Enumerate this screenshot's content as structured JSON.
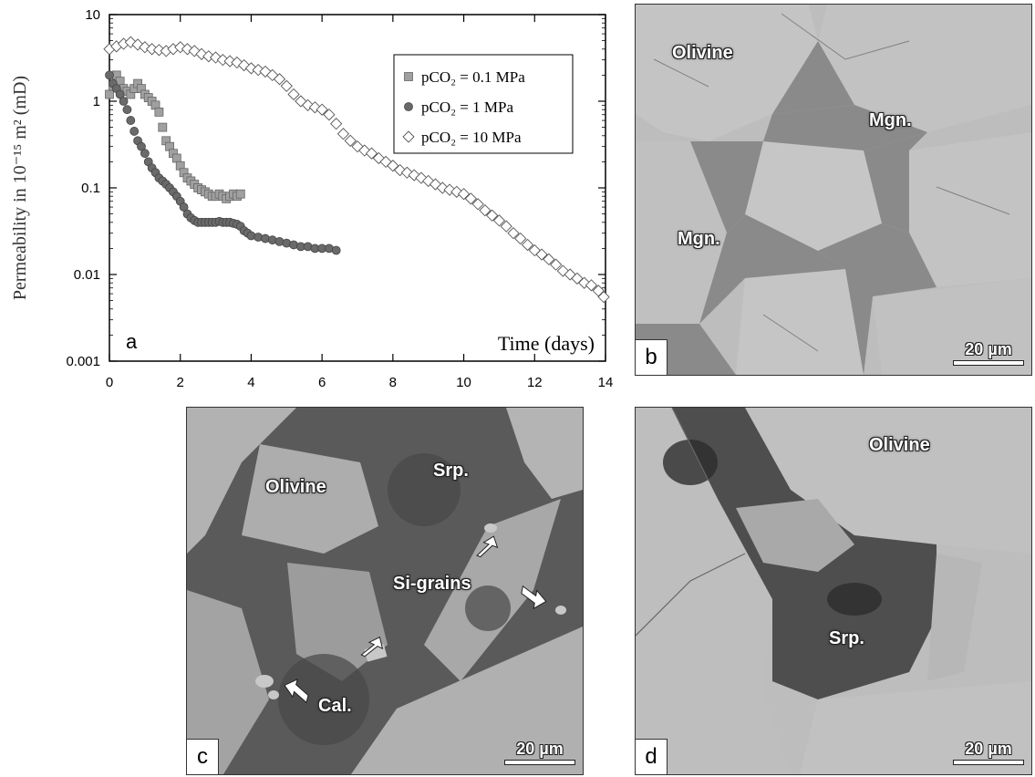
{
  "chart_data": {
    "type": "scatter",
    "panel_label": "a",
    "ylabel": "Permeability in 10⁻¹⁵ m² (mD)",
    "xlabel": "Time  (days)",
    "xlim": [
      0,
      14
    ],
    "ylim": [
      0.001,
      10
    ],
    "yscale": "log",
    "x_ticks": [
      "0",
      "2",
      "4",
      "6",
      "8",
      "10",
      "12",
      "14"
    ],
    "y_ticks": [
      "0.001",
      "0.01",
      "0.1",
      "1",
      "10"
    ],
    "legend_position": "top-right",
    "series": [
      {
        "name": "pCO₂ = 0.1 MPa",
        "marker": "square",
        "color": "#a0a0a0",
        "points": [
          [
            0,
            1.2
          ],
          [
            0.1,
            1.5
          ],
          [
            0.2,
            2.0
          ],
          [
            0.3,
            1.7
          ],
          [
            0.4,
            1.4
          ],
          [
            0.5,
            1.3
          ],
          [
            0.6,
            1.2
          ],
          [
            0.7,
            1.4
          ],
          [
            0.8,
            1.6
          ],
          [
            0.9,
            1.4
          ],
          [
            1.0,
            1.2
          ],
          [
            1.1,
            1.1
          ],
          [
            1.2,
            1.0
          ],
          [
            1.3,
            0.9
          ],
          [
            1.4,
            0.75
          ],
          [
            1.5,
            0.5
          ],
          [
            1.6,
            0.35
          ],
          [
            1.7,
            0.3
          ],
          [
            1.8,
            0.25
          ],
          [
            1.9,
            0.22
          ],
          [
            2.0,
            0.18
          ],
          [
            2.1,
            0.15
          ],
          [
            2.2,
            0.13
          ],
          [
            2.3,
            0.12
          ],
          [
            2.4,
            0.11
          ],
          [
            2.5,
            0.1
          ],
          [
            2.6,
            0.095
          ],
          [
            2.7,
            0.09
          ],
          [
            2.8,
            0.085
          ],
          [
            2.9,
            0.08
          ],
          [
            3.0,
            0.08
          ],
          [
            3.1,
            0.085
          ],
          [
            3.2,
            0.08
          ],
          [
            3.3,
            0.075
          ],
          [
            3.4,
            0.08
          ],
          [
            3.5,
            0.085
          ],
          [
            3.6,
            0.08
          ],
          [
            3.7,
            0.085
          ]
        ]
      },
      {
        "name": "pCO₂ = 1 MPa",
        "marker": "circle",
        "color": "#6a6a6a",
        "points": [
          [
            0,
            2.0
          ],
          [
            0.1,
            1.6
          ],
          [
            0.2,
            1.4
          ],
          [
            0.3,
            1.2
          ],
          [
            0.4,
            1.0
          ],
          [
            0.5,
            0.8
          ],
          [
            0.6,
            0.6
          ],
          [
            0.7,
            0.45
          ],
          [
            0.8,
            0.35
          ],
          [
            0.9,
            0.3
          ],
          [
            1.0,
            0.25
          ],
          [
            1.1,
            0.2
          ],
          [
            1.2,
            0.17
          ],
          [
            1.3,
            0.15
          ],
          [
            1.4,
            0.13
          ],
          [
            1.5,
            0.12
          ],
          [
            1.6,
            0.11
          ],
          [
            1.7,
            0.1
          ],
          [
            1.8,
            0.09
          ],
          [
            1.9,
            0.08
          ],
          [
            2.0,
            0.07
          ],
          [
            2.1,
            0.06
          ],
          [
            2.2,
            0.05
          ],
          [
            2.3,
            0.045
          ],
          [
            2.4,
            0.042
          ],
          [
            2.5,
            0.04
          ],
          [
            2.6,
            0.04
          ],
          [
            2.7,
            0.04
          ],
          [
            2.8,
            0.04
          ],
          [
            2.9,
            0.04
          ],
          [
            3.0,
            0.04
          ],
          [
            3.1,
            0.041
          ],
          [
            3.2,
            0.04
          ],
          [
            3.3,
            0.04
          ],
          [
            3.4,
            0.04
          ],
          [
            3.5,
            0.039
          ],
          [
            3.6,
            0.038
          ],
          [
            3.7,
            0.036
          ],
          [
            3.8,
            0.032
          ],
          [
            3.9,
            0.03
          ],
          [
            4.0,
            0.028
          ],
          [
            4.2,
            0.027
          ],
          [
            4.4,
            0.026
          ],
          [
            4.6,
            0.025
          ],
          [
            4.8,
            0.024
          ],
          [
            5.0,
            0.023
          ],
          [
            5.2,
            0.022
          ],
          [
            5.4,
            0.021
          ],
          [
            5.6,
            0.021
          ],
          [
            5.8,
            0.02
          ],
          [
            6.0,
            0.02
          ],
          [
            6.2,
            0.02
          ],
          [
            6.4,
            0.019
          ]
        ]
      },
      {
        "name": "pCO₂ = 10 MPa",
        "marker": "diamond",
        "color": "#ffffff",
        "points": [
          [
            0,
            4.0
          ],
          [
            0.2,
            4.3
          ],
          [
            0.4,
            4.6
          ],
          [
            0.6,
            4.8
          ],
          [
            0.8,
            4.5
          ],
          [
            1.0,
            4.2
          ],
          [
            1.2,
            4.0
          ],
          [
            1.4,
            3.9
          ],
          [
            1.6,
            3.8
          ],
          [
            1.8,
            4.0
          ],
          [
            2.0,
            4.2
          ],
          [
            2.2,
            4.0
          ],
          [
            2.4,
            3.8
          ],
          [
            2.6,
            3.5
          ],
          [
            2.8,
            3.3
          ],
          [
            3.0,
            3.2
          ],
          [
            3.2,
            3.0
          ],
          [
            3.4,
            2.9
          ],
          [
            3.6,
            2.8
          ],
          [
            3.8,
            2.6
          ],
          [
            4.0,
            2.4
          ],
          [
            4.2,
            2.3
          ],
          [
            4.4,
            2.2
          ],
          [
            4.6,
            2.0
          ],
          [
            4.8,
            1.8
          ],
          [
            5.0,
            1.5
          ],
          [
            5.2,
            1.2
          ],
          [
            5.4,
            1.0
          ],
          [
            5.6,
            0.9
          ],
          [
            5.8,
            0.85
          ],
          [
            6.0,
            0.8
          ],
          [
            6.2,
            0.7
          ],
          [
            6.4,
            0.55
          ],
          [
            6.6,
            0.42
          ],
          [
            6.8,
            0.35
          ],
          [
            7.0,
            0.3
          ],
          [
            7.2,
            0.27
          ],
          [
            7.4,
            0.25
          ],
          [
            7.6,
            0.22
          ],
          [
            7.8,
            0.2
          ],
          [
            8.0,
            0.18
          ],
          [
            8.2,
            0.16
          ],
          [
            8.4,
            0.15
          ],
          [
            8.6,
            0.14
          ],
          [
            8.8,
            0.13
          ],
          [
            9.0,
            0.12
          ],
          [
            9.2,
            0.11
          ],
          [
            9.4,
            0.1
          ],
          [
            9.6,
            0.095
          ],
          [
            9.8,
            0.09
          ],
          [
            10.0,
            0.085
          ],
          [
            10.2,
            0.075
          ],
          [
            10.4,
            0.065
          ],
          [
            10.6,
            0.055
          ],
          [
            10.8,
            0.048
          ],
          [
            11.0,
            0.042
          ],
          [
            11.2,
            0.036
          ],
          [
            11.4,
            0.03
          ],
          [
            11.6,
            0.026
          ],
          [
            11.8,
            0.022
          ],
          [
            12.0,
            0.019
          ],
          [
            12.2,
            0.017
          ],
          [
            12.4,
            0.015
          ],
          [
            12.6,
            0.013
          ],
          [
            12.8,
            0.011
          ],
          [
            13.0,
            0.01
          ],
          [
            13.2,
            0.009
          ],
          [
            13.4,
            0.008
          ],
          [
            13.6,
            0.0075
          ],
          [
            13.8,
            0.0065
          ],
          [
            13.95,
            0.0055
          ]
        ]
      }
    ]
  },
  "panels": {
    "b": {
      "label": "b",
      "scale": "20 µm",
      "annotations": [
        "Olivine",
        "Mgn.",
        "Mgn."
      ]
    },
    "c": {
      "label": "c",
      "scale": "20 µm",
      "annotations": [
        "Olivine",
        "Srp.",
        "Si-grains",
        "Cal."
      ]
    },
    "d": {
      "label": "d",
      "scale": "20 µm",
      "annotations": [
        "Olivine",
        "Srp."
      ]
    }
  }
}
